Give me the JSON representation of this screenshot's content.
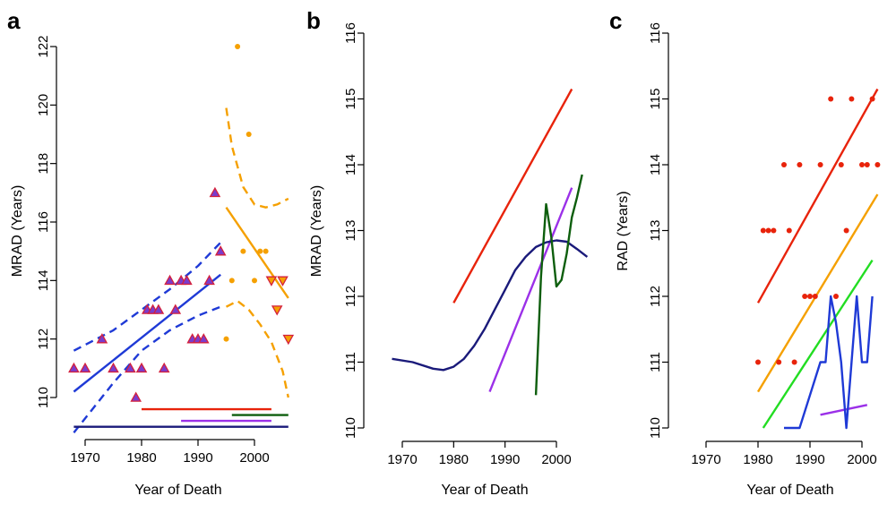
{
  "figure": {
    "title": ""
  },
  "chart_data": [
    {
      "panel": "a",
      "type": "scatter",
      "title": "",
      "xlabel": "Year of Death",
      "ylabel": "MRAD (Years)",
      "xlim": [
        1966,
        2007
      ],
      "ylim": [
        109,
        122.5
      ],
      "x_ticks": [
        1970,
        1980,
        1990,
        2000
      ],
      "y_ticks": [
        110,
        112,
        114,
        116,
        118,
        120,
        122
      ],
      "tick_labels_x": [
        "1970",
        "1980",
        "1990",
        "2000"
      ],
      "tick_labels_y": [
        "110",
        "112",
        "114",
        "116",
        "118",
        "120",
        "122"
      ],
      "grid": false,
      "markers": [
        {
          "name": "",
          "shape": "triangle-up",
          "color": "#d4203c",
          "fill": "#7a3ccc",
          "points": [
            [
              1968,
              111
            ],
            [
              1970,
              111
            ],
            [
              1973,
              112
            ],
            [
              1975,
              111
            ],
            [
              1978,
              111
            ],
            [
              1979,
              110
            ],
            [
              1980,
              111
            ],
            [
              1981,
              113
            ],
            [
              1982,
              113
            ],
            [
              1983,
              113
            ],
            [
              1984,
              111
            ],
            [
              1985,
              114
            ],
            [
              1986,
              113
            ],
            [
              1987,
              114
            ],
            [
              1988,
              114
            ],
            [
              1989,
              112
            ],
            [
              1990,
              112
            ],
            [
              1991,
              112
            ],
            [
              1992,
              114
            ],
            [
              1993,
              117
            ],
            [
              1994,
              115
            ]
          ]
        },
        {
          "name": "",
          "shape": "circle",
          "color": "#f5a000",
          "points": [
            [
              1995,
              112
            ],
            [
              1996,
              114
            ],
            [
              1997,
              122
            ],
            [
              1998,
              115
            ],
            [
              1999,
              119
            ],
            [
              2000,
              114
            ],
            [
              2001,
              115
            ],
            [
              2002,
              115
            ]
          ]
        },
        {
          "name": "",
          "shape": "triangle-down",
          "color": "#d4203c",
          "fill": "#f5a000",
          "points": [
            [
              2003,
              114
            ],
            [
              2004,
              113
            ],
            [
              2005,
              114
            ],
            [
              2006,
              112
            ]
          ]
        }
      ],
      "lines": [
        {
          "name": "",
          "color": "#1f3ad6",
          "dash": false,
          "points": [
            [
              1968,
              110.2
            ],
            [
              1994,
              114.2
            ]
          ]
        },
        {
          "name": "",
          "color": "#1f3ad6",
          "dash": true,
          "points": [
            [
              1968,
              108.8
            ],
            [
              1975,
              110.5
            ],
            [
              1980,
              111.6
            ],
            [
              1985,
              112.3
            ],
            [
              1990,
              112.8
            ],
            [
              1994,
              113.1
            ]
          ]
        },
        {
          "name": "",
          "color": "#1f3ad6",
          "dash": true,
          "points": [
            [
              1968,
              111.6
            ],
            [
              1975,
              112.3
            ],
            [
              1980,
              113.0
            ],
            [
              1985,
              113.7
            ],
            [
              1990,
              114.5
            ],
            [
              1994,
              115.3
            ]
          ]
        },
        {
          "name": "",
          "color": "#f5a000",
          "dash": false,
          "points": [
            [
              1995,
              116.5
            ],
            [
              2006,
              113.4
            ]
          ]
        },
        {
          "name": "",
          "color": "#f5a000",
          "dash": true,
          "points": [
            [
              1995,
              119.9
            ],
            [
              1996,
              118.6
            ],
            [
              1998,
              117.2
            ],
            [
              2000,
              116.6
            ],
            [
              2002,
              116.5
            ],
            [
              2004,
              116.6
            ],
            [
              2006,
              116.8
            ]
          ]
        },
        {
          "name": "",
          "color": "#f5a000",
          "dash": true,
          "points": [
            [
              1995,
              113.1
            ],
            [
              1997,
              113.3
            ],
            [
              1999,
              113.0
            ],
            [
              2001,
              112.5
            ],
            [
              2003,
              111.9
            ],
            [
              2005,
              110.9
            ],
            [
              2006,
              110.0
            ]
          ]
        },
        {
          "name": "",
          "color": "#1a1a7a",
          "dash": false,
          "points": [
            [
              1968,
              109.0
            ],
            [
              2006,
              109.0
            ]
          ]
        },
        {
          "name": "",
          "color": "#e8230b",
          "dash": false,
          "points": [
            [
              1980,
              109.6
            ],
            [
              2003,
              109.6
            ]
          ]
        },
        {
          "name": "",
          "color": "#9b30e8",
          "dash": false,
          "points": [
            [
              1987,
              109.2
            ],
            [
              2003,
              109.2
            ]
          ]
        },
        {
          "name": "",
          "color": "#0d5e0d",
          "dash": false,
          "points": [
            [
              1996,
              109.4
            ],
            [
              2006,
              109.4
            ]
          ]
        }
      ]
    },
    {
      "panel": "b",
      "type": "line",
      "title": "",
      "xlabel": "Year of Death",
      "ylabel": "MRAD (Years)",
      "xlim": [
        1964,
        2007
      ],
      "ylim": [
        110,
        116
      ],
      "x_ticks": [
        1970,
        1980,
        1990,
        2000
      ],
      "y_ticks": [
        110,
        111,
        112,
        113,
        114,
        115,
        116
      ],
      "tick_labels_x": [
        "1970",
        "1980",
        "1990",
        "2000"
      ],
      "tick_labels_y": [
        "110",
        "111",
        "112",
        "113",
        "114",
        "115",
        "116"
      ],
      "grid": false,
      "series": [
        {
          "name": "",
          "color": "#e8230b",
          "points": [
            [
              1980,
              111.9
            ],
            [
              2003,
              115.15
            ]
          ]
        },
        {
          "name": "",
          "color": "#9b30e8",
          "points": [
            [
              1987,
              110.55
            ],
            [
              2003,
              113.65
            ]
          ]
        },
        {
          "name": "",
          "color": "#1a1a7a",
          "points": [
            [
              1968,
              111.05
            ],
            [
              1972,
              111.0
            ],
            [
              1976,
              110.9
            ],
            [
              1978,
              110.88
            ],
            [
              1980,
              110.93
            ],
            [
              1982,
              111.05
            ],
            [
              1984,
              111.25
            ],
            [
              1986,
              111.5
            ],
            [
              1988,
              111.8
            ],
            [
              1990,
              112.1
            ],
            [
              1992,
              112.4
            ],
            [
              1994,
              112.6
            ],
            [
              1996,
              112.75
            ],
            [
              1998,
              112.82
            ],
            [
              2000,
              112.85
            ],
            [
              2002,
              112.83
            ],
            [
              2004,
              112.72
            ],
            [
              2006,
              112.6
            ]
          ]
        },
        {
          "name": "",
          "color": "#0d5e0d",
          "points": [
            [
              1996,
              110.5
            ],
            [
              1997,
              112.3
            ],
            [
              1998,
              113.4
            ],
            [
              1999,
              112.9
            ],
            [
              2000,
              112.15
            ],
            [
              2001,
              112.25
            ],
            [
              2002,
              112.65
            ],
            [
              2003,
              113.2
            ],
            [
              2004,
              113.5
            ],
            [
              2005,
              113.85
            ]
          ]
        }
      ]
    },
    {
      "panel": "c",
      "type": "scatter",
      "title": "",
      "xlabel": "Year of Death",
      "ylabel": "RAD (Years)",
      "xlim": [
        1964,
        2004
      ],
      "ylim": [
        110,
        116
      ],
      "x_ticks": [
        1970,
        1980,
        1990,
        2000
      ],
      "y_ticks": [
        110,
        111,
        112,
        113,
        114,
        115,
        116
      ],
      "tick_labels_x": [
        "1970",
        "1980",
        "1990",
        "2000"
      ],
      "tick_labels_y": [
        "110",
        "111",
        "112",
        "113",
        "114",
        "115",
        "116"
      ],
      "grid": false,
      "markers": [
        {
          "name": "",
          "shape": "circle",
          "color": "#e8230b",
          "points": [
            [
              1980,
              111
            ],
            [
              1981,
              113
            ],
            [
              1982,
              113
            ],
            [
              1983,
              113
            ],
            [
              1984,
              111
            ],
            [
              1985,
              114
            ],
            [
              1986,
              113
            ],
            [
              1987,
              111
            ],
            [
              1988,
              114
            ],
            [
              1989,
              112
            ],
            [
              1990,
              112
            ],
            [
              1991,
              112
            ],
            [
              1992,
              114
            ],
            [
              1994,
              115
            ],
            [
              1995,
              112
            ],
            [
              1996,
              114
            ],
            [
              1997,
              113
            ],
            [
              1998,
              115
            ],
            [
              2000,
              114
            ],
            [
              2001,
              114
            ],
            [
              2002,
              115
            ],
            [
              2003,
              114
            ]
          ]
        }
      ],
      "series": [
        {
          "name": "",
          "color": "#e8230b",
          "points": [
            [
              1980,
              111.9
            ],
            [
              2003,
              115.15
            ]
          ]
        },
        {
          "name": "",
          "color": "#f5a000",
          "points": [
            [
              1980,
              110.55
            ],
            [
              2003,
              113.55
            ]
          ]
        },
        {
          "name": "",
          "color": "#22dd22",
          "points": [
            [
              1981,
              110.0
            ],
            [
              2002,
              112.55
            ]
          ]
        },
        {
          "name": "",
          "color": "#9b30e8",
          "points": [
            [
              1992,
              110.2
            ],
            [
              2001,
              110.35
            ]
          ]
        },
        {
          "name": "",
          "color": "#1f3ad6",
          "points": [
            [
              1985,
              110.0
            ],
            [
              1988,
              110.0
            ],
            [
              1990,
              110.5
            ],
            [
              1992,
              111.0
            ],
            [
              1993,
              111.0
            ],
            [
              1994,
              112.0
            ],
            [
              1995,
              111.6
            ],
            [
              1996,
              111.0
            ],
            [
              1997,
              110.0
            ],
            [
              1998,
              111.0
            ],
            [
              1999,
              112.0
            ],
            [
              2000,
              111.0
            ],
            [
              2001,
              111.0
            ],
            [
              2002,
              112.0
            ]
          ]
        }
      ]
    }
  ]
}
